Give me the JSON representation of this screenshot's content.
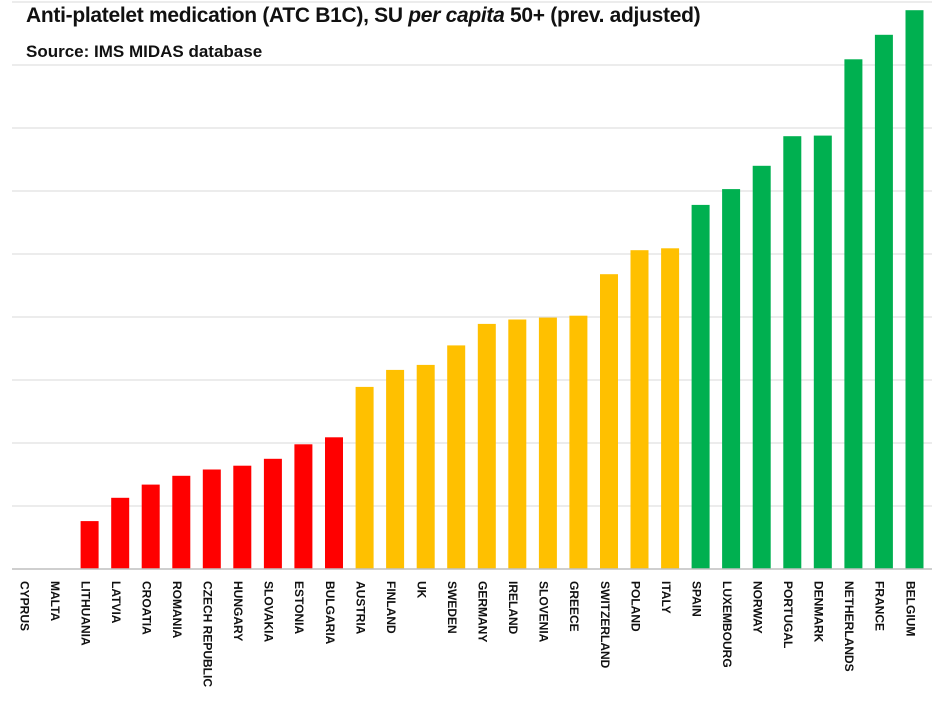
{
  "title_parts": {
    "prefix": "Anti-platelet medication (ATC B1C), SU ",
    "italic": "per capita",
    "suffix": " 50+ (prev. adjusted)"
  },
  "subtitle": "Source: IMS MIDAS database",
  "colors": {
    "red": "#ff0000",
    "orange": "#ffc000",
    "green": "#00b050",
    "grid": "#d9d9d9",
    "axis": "#bfbfbf"
  },
  "chart_data": {
    "type": "bar",
    "title": "Anti-platelet medication (ATC B1C), SU per capita 50+ (prev. adjusted)",
    "subtitle": "Source: IMS MIDAS database",
    "xlabel": "",
    "ylabel": "",
    "ylim": [
      0,
      9
    ],
    "y_ticks_shown": false,
    "grid": true,
    "categories": [
      "CYPRUS",
      "MALTA",
      "LITHUANIA",
      "LATVIA",
      "CROATIA",
      "ROMANIA",
      "CZECH REPUBLIC",
      "HUNGARY",
      "SLOVAKIA",
      "ESTONIA",
      "BULGARIA",
      "AUSTRIA",
      "FINLAND",
      "UK",
      "SWEDEN",
      "GERMANY",
      "IRELAND",
      "SLOVENIA",
      "GREECE",
      "SWITZERLAND",
      "POLAND",
      "ITALY",
      "SPAIN",
      "LUXEMBOURG",
      "NORWAY",
      "PORTUGAL",
      "DENMARK",
      "NETHERLANDS",
      "FRANCE",
      "BELGIUM"
    ],
    "values": [
      0,
      0,
      0.76,
      1.13,
      1.34,
      1.48,
      1.58,
      1.64,
      1.75,
      1.98,
      2.09,
      2.89,
      3.16,
      3.24,
      3.55,
      3.89,
      3.96,
      3.99,
      4.02,
      4.68,
      5.06,
      5.09,
      5.78,
      6.03,
      6.4,
      6.87,
      6.88,
      8.09,
      8.48,
      8.87
    ],
    "groups": [
      "none",
      "none",
      "red",
      "red",
      "red",
      "red",
      "red",
      "red",
      "red",
      "red",
      "red",
      "orange",
      "orange",
      "orange",
      "orange",
      "orange",
      "orange",
      "orange",
      "orange",
      "orange",
      "orange",
      "orange",
      "green",
      "green",
      "green",
      "green",
      "green",
      "green",
      "green",
      "green"
    ]
  }
}
